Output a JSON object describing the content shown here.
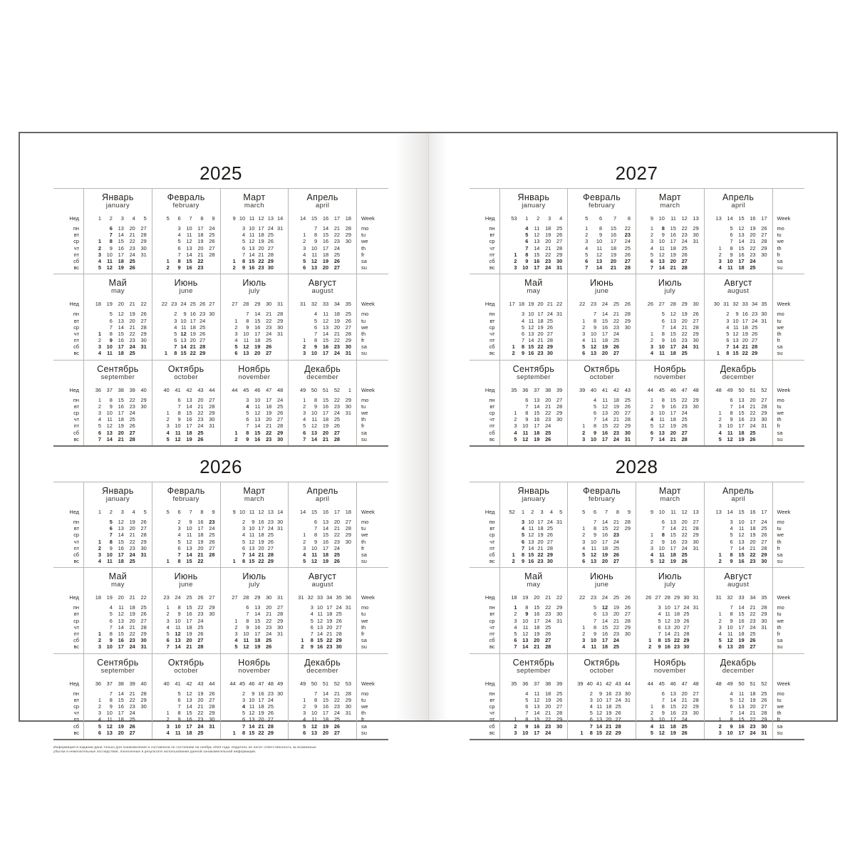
{
  "page": {
    "week_label_ru": "Нед",
    "week_label_en": "Week",
    "weekdays_ru": [
      "пн",
      "вт",
      "ср",
      "чт",
      "пт",
      "сб",
      "вс"
    ],
    "weekdays_en": [
      "mo",
      "tu",
      "we",
      "th",
      "fr",
      "sa",
      "su"
    ],
    "disclaimer": "Информация в издании дана только для ознакомления и составлена по состоянию на ноябрь 2023 года. Издатель не несет ответственность за возможные убытки и нежелательные последствия, понесенные в результате использования данной ознакомительной информации."
  },
  "colors": {
    "text": "#2a2522",
    "border_light": "#b9b4b0",
    "border_dark": "#716d6a",
    "page_background": "#ffffff"
  },
  "years": [
    {
      "year": "2025",
      "months": [
        {
          "ru": "Январь",
          "en": "january",
          "weeks": [
            1,
            2,
            3,
            4,
            5
          ],
          "start": 2,
          "days": 31,
          "bold_dates": [
            1,
            2,
            3,
            6,
            7,
            8
          ]
        },
        {
          "ru": "Февраль",
          "en": "february",
          "weeks": [
            5,
            6,
            7,
            8,
            9
          ],
          "start": 5,
          "days": 28,
          "bold_dates": []
        },
        {
          "ru": "Март",
          "en": "march",
          "weeks": [
            9,
            10,
            11,
            12,
            13,
            14
          ],
          "start": 5,
          "days": 31,
          "bold_dates": []
        },
        {
          "ru": "Апрель",
          "en": "april",
          "weeks": [
            14,
            15,
            16,
            17,
            18
          ],
          "start": 1,
          "days": 30,
          "bold_dates": []
        },
        {
          "ru": "Май",
          "en": "may",
          "weeks": [
            18,
            19,
            20,
            21,
            22
          ],
          "start": 3,
          "days": 31,
          "bold_dates": [
            1,
            9
          ]
        },
        {
          "ru": "Июнь",
          "en": "june",
          "weeks": [
            22,
            23,
            24,
            25,
            26,
            27
          ],
          "start": 6,
          "days": 30,
          "bold_dates": [
            12
          ]
        },
        {
          "ru": "Июль",
          "en": "july",
          "weeks": [
            27,
            28,
            29,
            30,
            31
          ],
          "start": 1,
          "days": 31,
          "bold_dates": []
        },
        {
          "ru": "Август",
          "en": "august",
          "weeks": [
            31,
            32,
            33,
            34,
            35
          ],
          "start": 4,
          "days": 31,
          "bold_dates": []
        },
        {
          "ru": "Сентябрь",
          "en": "september",
          "weeks": [
            36,
            37,
            38,
            39,
            40
          ],
          "start": 0,
          "days": 30,
          "bold_dates": []
        },
        {
          "ru": "Октябрь",
          "en": "october",
          "weeks": [
            40,
            41,
            42,
            43,
            44
          ],
          "start": 2,
          "days": 31,
          "bold_dates": []
        },
        {
          "ru": "Ноябрь",
          "en": "november",
          "weeks": [
            44,
            45,
            46,
            47,
            48
          ],
          "start": 5,
          "days": 30,
          "bold_dates": [
            4
          ]
        },
        {
          "ru": "Декабрь",
          "en": "december",
          "weeks": [
            49,
            50,
            51,
            52,
            1
          ],
          "start": 0,
          "days": 31,
          "bold_dates": []
        }
      ]
    },
    {
      "year": "2026",
      "months": [
        {
          "ru": "Январь",
          "en": "january",
          "weeks": [
            1,
            2,
            3,
            4,
            5
          ],
          "start": 3,
          "days": 31,
          "bold_dates": [
            1,
            2,
            5,
            6,
            7,
            8
          ]
        },
        {
          "ru": "Февраль",
          "en": "february",
          "weeks": [
            5,
            6,
            7,
            8,
            9
          ],
          "start": 6,
          "days": 28,
          "bold_dates": [
            23
          ]
        },
        {
          "ru": "Март",
          "en": "march",
          "weeks": [
            9,
            10,
            11,
            12,
            13,
            14
          ],
          "start": 6,
          "days": 31,
          "bold_dates": []
        },
        {
          "ru": "Апрель",
          "en": "april",
          "weeks": [
            14,
            15,
            16,
            17,
            18
          ],
          "start": 2,
          "days": 30,
          "bold_dates": []
        },
        {
          "ru": "Май",
          "en": "may",
          "weeks": [
            18,
            19,
            20,
            21,
            22
          ],
          "start": 4,
          "days": 31,
          "bold_dates": [
            1
          ]
        },
        {
          "ru": "Июнь",
          "en": "june",
          "weeks": [
            23,
            24,
            25,
            26,
            27
          ],
          "start": 0,
          "days": 30,
          "bold_dates": [
            12
          ]
        },
        {
          "ru": "Июль",
          "en": "july",
          "weeks": [
            27,
            28,
            29,
            30,
            31
          ],
          "start": 2,
          "days": 31,
          "bold_dates": []
        },
        {
          "ru": "Август",
          "en": "august",
          "weeks": [
            31,
            32,
            33,
            34,
            35,
            36
          ],
          "start": 5,
          "days": 31,
          "bold_dates": []
        },
        {
          "ru": "Сентябрь",
          "en": "september",
          "weeks": [
            36,
            37,
            38,
            39,
            40
          ],
          "start": 1,
          "days": 30,
          "bold_dates": []
        },
        {
          "ru": "Октябрь",
          "en": "october",
          "weeks": [
            40,
            41,
            42,
            43,
            44
          ],
          "start": 3,
          "days": 31,
          "bold_dates": []
        },
        {
          "ru": "Ноябрь",
          "en": "november",
          "weeks": [
            44,
            45,
            46,
            47,
            48,
            49
          ],
          "start": 6,
          "days": 30,
          "bold_dates": [
            4
          ]
        },
        {
          "ru": "Декабрь",
          "en": "december",
          "weeks": [
            49,
            50,
            51,
            52,
            53
          ],
          "start": 1,
          "days": 31,
          "bold_dates": []
        }
      ]
    },
    {
      "year": "2027",
      "months": [
        {
          "ru": "Январь",
          "en": "january",
          "weeks": [
            53,
            1,
            2,
            3,
            4
          ],
          "start": 4,
          "days": 31,
          "bold_dates": [
            1,
            4,
            5,
            6,
            7,
            8
          ]
        },
        {
          "ru": "Февраль",
          "en": "february",
          "weeks": [
            5,
            6,
            7,
            8
          ],
          "start": 0,
          "days": 28,
          "bold_dates": [
            23
          ]
        },
        {
          "ru": "Март",
          "en": "march",
          "weeks": [
            9,
            10,
            11,
            12,
            13
          ],
          "start": 0,
          "days": 31,
          "bold_dates": [
            8
          ]
        },
        {
          "ru": "Апрель",
          "en": "april",
          "weeks": [
            13,
            14,
            15,
            16,
            17
          ],
          "start": 3,
          "days": 30,
          "bold_dates": []
        },
        {
          "ru": "Май",
          "en": "may",
          "weeks": [
            17,
            18,
            19,
            20,
            21,
            22
          ],
          "start": 5,
          "days": 31,
          "bold_dates": []
        },
        {
          "ru": "Июнь",
          "en": "june",
          "weeks": [
            22,
            23,
            24,
            25,
            26
          ],
          "start": 1,
          "days": 30,
          "bold_dates": []
        },
        {
          "ru": "Июль",
          "en": "july",
          "weeks": [
            26,
            27,
            28,
            29,
            30
          ],
          "start": 3,
          "days": 31,
          "bold_dates": []
        },
        {
          "ru": "Август",
          "en": "august",
          "weeks": [
            30,
            31,
            32,
            33,
            34,
            35
          ],
          "start": 6,
          "days": 31,
          "bold_dates": []
        },
        {
          "ru": "Сентябрь",
          "en": "september",
          "weeks": [
            35,
            36,
            37,
            38,
            39
          ],
          "start": 2,
          "days": 30,
          "bold_dates": []
        },
        {
          "ru": "Октябрь",
          "en": "october",
          "weeks": [
            39,
            40,
            41,
            42,
            43
          ],
          "start": 4,
          "days": 31,
          "bold_dates": []
        },
        {
          "ru": "Ноябрь",
          "en": "november",
          "weeks": [
            44,
            45,
            46,
            47,
            48
          ],
          "start": 0,
          "days": 30,
          "bold_dates": [
            4
          ]
        },
        {
          "ru": "Декабрь",
          "en": "december",
          "weeks": [
            48,
            49,
            50,
            51,
            52
          ],
          "start": 2,
          "days": 31,
          "bold_dates": []
        }
      ]
    },
    {
      "year": "2028",
      "months": [
        {
          "ru": "Январь",
          "en": "january",
          "weeks": [
            52,
            1,
            2,
            3,
            4,
            5
          ],
          "start": 5,
          "days": 31,
          "bold_dates": [
            3,
            4,
            5,
            6,
            7
          ]
        },
        {
          "ru": "Февраль",
          "en": "february",
          "weeks": [
            5,
            6,
            7,
            8,
            9
          ],
          "start": 1,
          "days": 29,
          "bold_dates": [
            23
          ]
        },
        {
          "ru": "Март",
          "en": "march",
          "weeks": [
            9,
            10,
            11,
            12,
            13
          ],
          "start": 2,
          "days": 31,
          "bold_dates": [
            8
          ]
        },
        {
          "ru": "Апрель",
          "en": "april",
          "weeks": [
            13,
            14,
            15,
            16,
            17
          ],
          "start": 5,
          "days": 30,
          "bold_dates": []
        },
        {
          "ru": "Май",
          "en": "may",
          "weeks": [
            18,
            19,
            20,
            21,
            22
          ],
          "start": 0,
          "days": 31,
          "bold_dates": [
            1,
            9
          ]
        },
        {
          "ru": "Июнь",
          "en": "june",
          "weeks": [
            22,
            23,
            24,
            25,
            26
          ],
          "start": 3,
          "days": 30,
          "bold_dates": [
            12
          ]
        },
        {
          "ru": "Июль",
          "en": "july",
          "weeks": [
            26,
            27,
            28,
            29,
            30,
            31
          ],
          "start": 5,
          "days": 31,
          "bold_dates": []
        },
        {
          "ru": "Август",
          "en": "august",
          "weeks": [
            31,
            32,
            33,
            34,
            35
          ],
          "start": 1,
          "days": 31,
          "bold_dates": []
        },
        {
          "ru": "Сентябрь",
          "en": "september",
          "weeks": [
            35,
            36,
            37,
            38,
            39
          ],
          "start": 4,
          "days": 30,
          "bold_dates": []
        },
        {
          "ru": "Октябрь",
          "en": "october",
          "weeks": [
            39,
            40,
            41,
            42,
            43,
            44
          ],
          "start": 6,
          "days": 31,
          "bold_dates": []
        },
        {
          "ru": "Ноябрь",
          "en": "november",
          "weeks": [
            44,
            45,
            46,
            47,
            48
          ],
          "start": 2,
          "days": 30,
          "bold_dates": []
        },
        {
          "ru": "Декабрь",
          "en": "december",
          "weeks": [
            48,
            49,
            50,
            51,
            52
          ],
          "start": 4,
          "days": 31,
          "bold_dates": []
        }
      ]
    }
  ]
}
